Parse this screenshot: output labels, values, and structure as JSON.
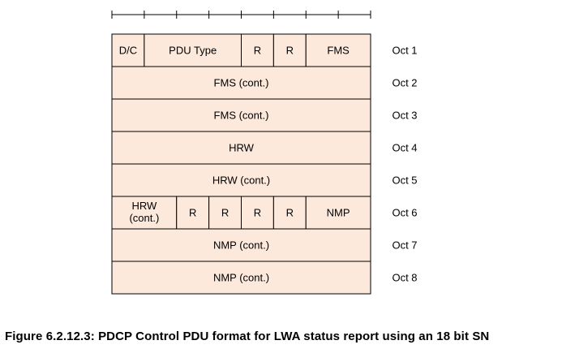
{
  "colors": {
    "cell_fill": "#fce9dc",
    "cell_border": "#000000",
    "ruler": "#000000"
  },
  "rows": [
    {
      "fields": [
        {
          "label": "D/C",
          "bits": 1
        },
        {
          "label": "PDU Type",
          "bits": 3
        },
        {
          "label": "R",
          "bits": 1
        },
        {
          "label": "R",
          "bits": 1
        },
        {
          "label": "FMS",
          "bits": 2
        }
      ],
      "oct": "Oct 1"
    },
    {
      "fields": [
        {
          "label": "FMS (cont.)",
          "bits": 8
        }
      ],
      "oct": "Oct 2"
    },
    {
      "fields": [
        {
          "label": "FMS (cont.)",
          "bits": 8
        }
      ],
      "oct": "Oct 3"
    },
    {
      "fields": [
        {
          "label": "HRW",
          "bits": 8
        }
      ],
      "oct": "Oct 4"
    },
    {
      "fields": [
        {
          "label": "HRW (cont.)",
          "bits": 8
        }
      ],
      "oct": "Oct 5"
    },
    {
      "fields": [
        {
          "label": "HRW (cont.)",
          "bits": 2,
          "lines": [
            "HRW",
            "(cont.)"
          ]
        },
        {
          "label": "R",
          "bits": 1
        },
        {
          "label": "R",
          "bits": 1
        },
        {
          "label": "R",
          "bits": 1
        },
        {
          "label": "R",
          "bits": 1
        },
        {
          "label": "NMP",
          "bits": 2
        }
      ],
      "oct": "Oct 6"
    },
    {
      "fields": [
        {
          "label": "NMP (cont.)",
          "bits": 8
        }
      ],
      "oct": "Oct 7"
    },
    {
      "fields": [
        {
          "label": "NMP (cont.)",
          "bits": 8
        }
      ],
      "oct": "Oct 8"
    }
  ],
  "caption": "Figure 6.2.12.3: PDCP Control PDU format for LWA status report using an 18 bit SN"
}
